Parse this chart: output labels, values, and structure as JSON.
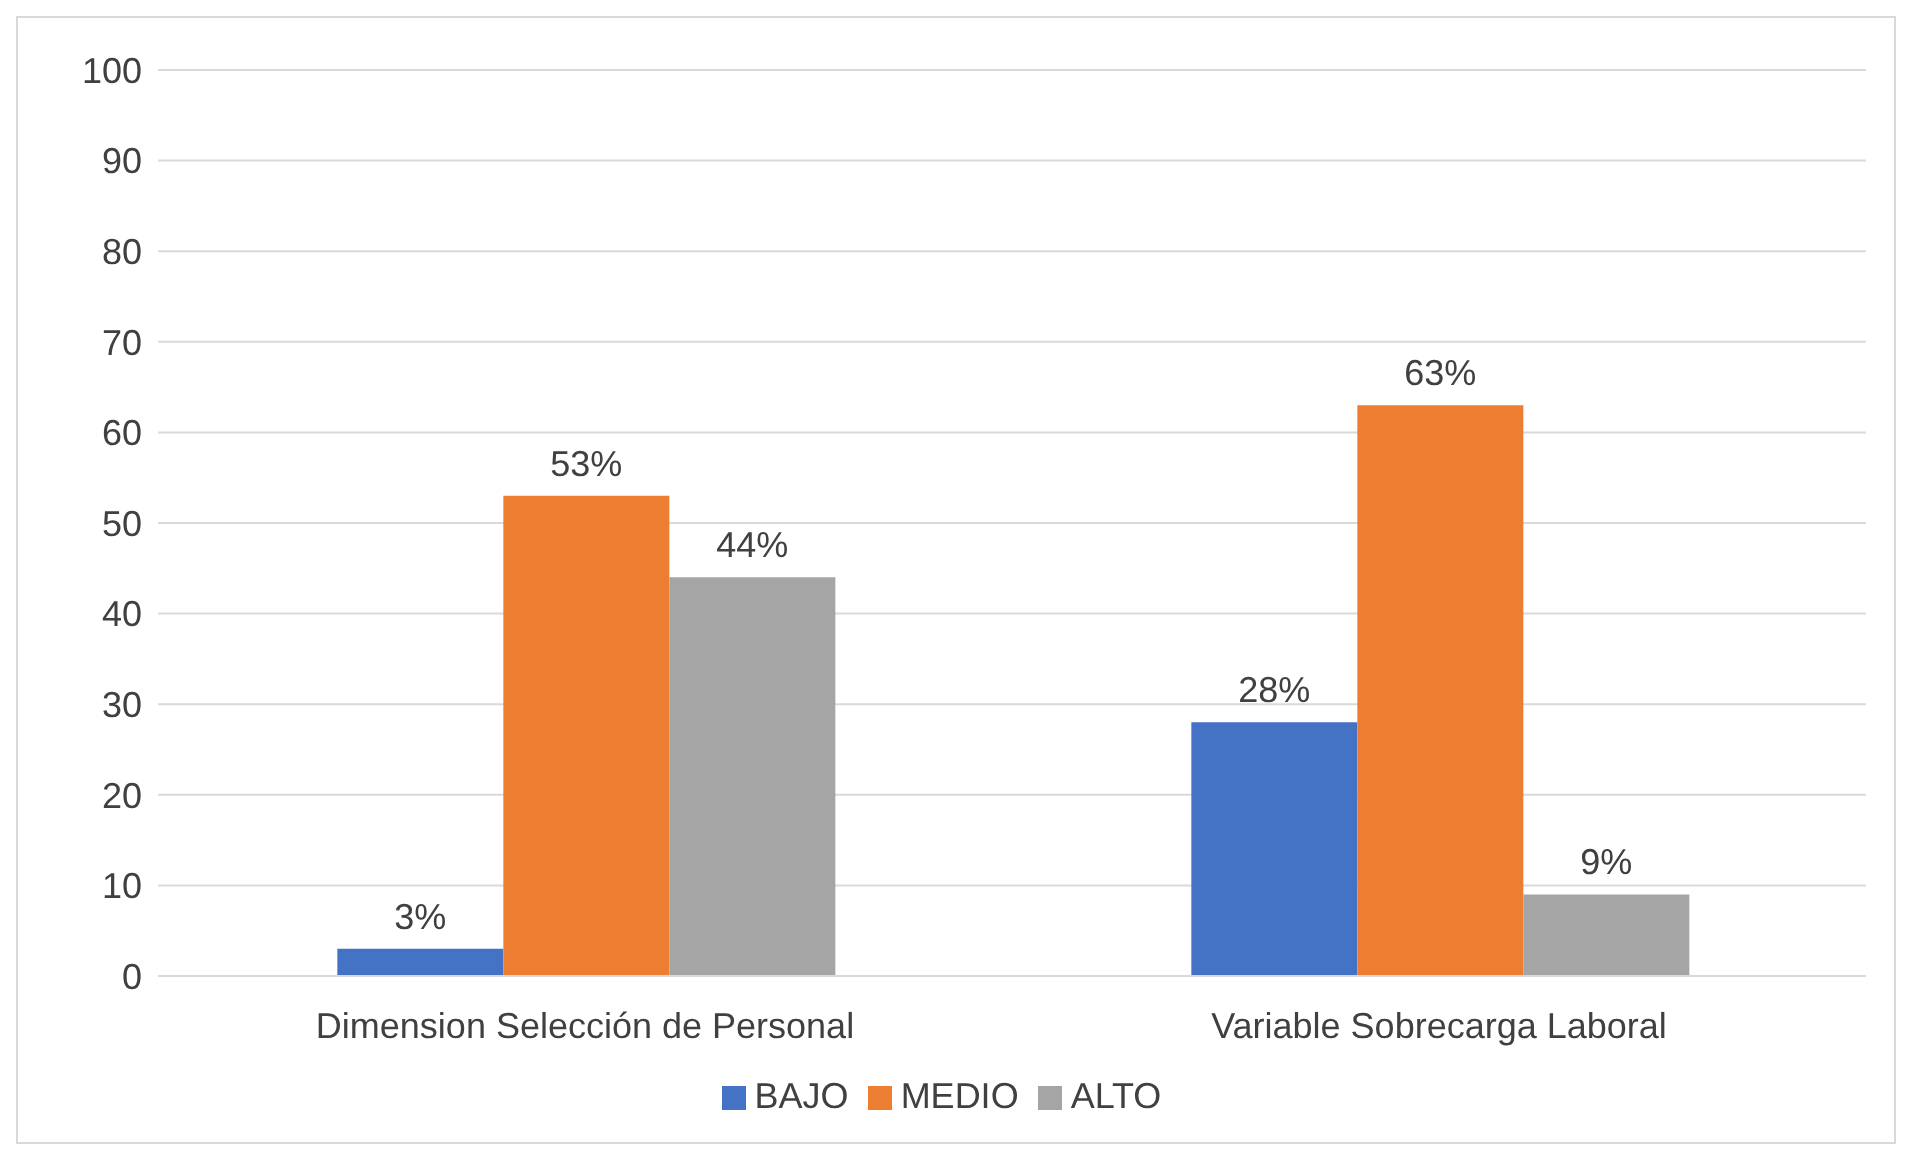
{
  "chart_data": {
    "type": "bar",
    "categories": [
      "Dimension Selección de Personal",
      "Variable Sobrecarga Laboral"
    ],
    "series": [
      {
        "name": "BAJO",
        "color": "#4472c4",
        "values": [
          3,
          28
        ],
        "value_labels": [
          "3%",
          "28%"
        ]
      },
      {
        "name": "MEDIO",
        "color": "#ed7d31",
        "values": [
          53,
          63
        ],
        "value_labels": [
          "53%",
          "63%"
        ]
      },
      {
        "name": "ALTO",
        "color": "#a5a5a5",
        "values": [
          44,
          9
        ],
        "value_labels": [
          "44%",
          "9%"
        ]
      }
    ],
    "ylim": [
      0,
      100
    ],
    "yticks": [
      0,
      10,
      20,
      30,
      40,
      50,
      60,
      70,
      80,
      90,
      100
    ],
    "grid": "y",
    "legend": "bottom"
  }
}
